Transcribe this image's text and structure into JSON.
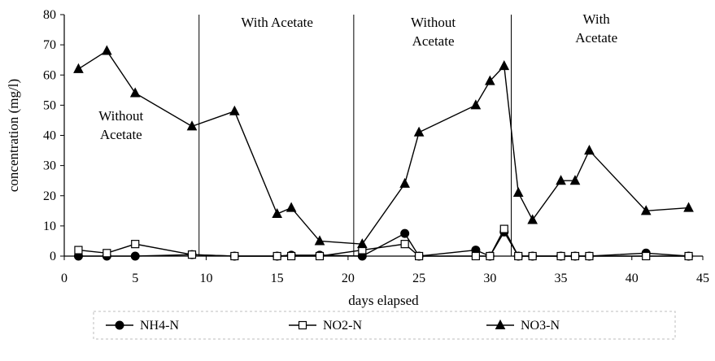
{
  "chart_data": {
    "type": "line",
    "title": "",
    "xlabel": "days elapsed",
    "ylabel": "concentration (mg/l)",
    "xlim": [
      0,
      45
    ],
    "ylim": [
      0,
      80
    ],
    "xticks": [
      0,
      5,
      10,
      15,
      20,
      25,
      30,
      35,
      40,
      45
    ],
    "yticks": [
      0,
      10,
      20,
      30,
      40,
      50,
      60,
      70,
      80
    ],
    "grid": false,
    "legend_position": "bottom",
    "phase_dividers_x": [
      9.5,
      20.4,
      31.5
    ],
    "annotations": [
      {
        "lines": [
          "Without",
          "Acetate"
        ],
        "x": 4,
        "y": 45
      },
      {
        "lines": [
          "With Acetate"
        ],
        "x": 15,
        "y": 76
      },
      {
        "lines": [
          "Without",
          "Acetate"
        ],
        "x": 26,
        "y": 76
      },
      {
        "lines": [
          "With",
          "Acetate"
        ],
        "x": 37.5,
        "y": 77
      }
    ],
    "series": [
      {
        "name": "NH4-N",
        "marker": "filled-circle",
        "x": [
          1,
          3,
          5,
          9,
          12,
          15,
          16,
          18,
          21,
          24,
          25,
          29,
          30,
          31,
          32,
          33,
          35,
          36,
          37,
          41,
          44
        ],
        "values": [
          0,
          0,
          0,
          0.5,
          0,
          0,
          0.3,
          0.3,
          0,
          7.5,
          0,
          2,
          0,
          8,
          0,
          0,
          0,
          0,
          0,
          1,
          0
        ]
      },
      {
        "name": "NO2-N",
        "marker": "open-square",
        "x": [
          1,
          3,
          5,
          9,
          12,
          15,
          16,
          18,
          21,
          24,
          25,
          29,
          30,
          31,
          32,
          33,
          35,
          36,
          37,
          41,
          44
        ],
        "values": [
          2,
          1,
          4,
          0.5,
          0,
          0,
          0,
          0,
          2,
          4,
          0,
          0,
          0,
          9,
          0,
          0,
          0,
          0,
          0,
          0,
          0
        ]
      },
      {
        "name": "NO3-N",
        "marker": "filled-triangle",
        "x": [
          1,
          3,
          5,
          9,
          12,
          15,
          16,
          18,
          21,
          24,
          25,
          29,
          30,
          31,
          32,
          33,
          35,
          36,
          37,
          41,
          44
        ],
        "values": [
          62,
          68,
          54,
          43,
          48,
          14,
          16,
          5,
          4,
          24,
          41,
          50,
          58,
          63,
          21,
          12,
          25,
          25,
          35,
          15,
          16
        ]
      }
    ]
  }
}
